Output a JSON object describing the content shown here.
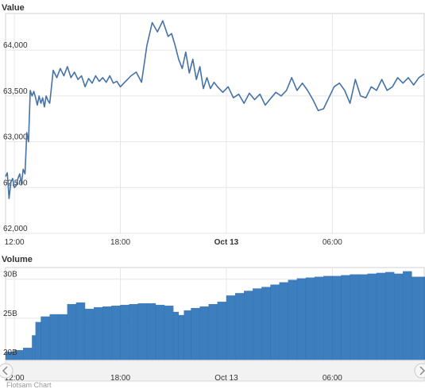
{
  "chart_data": [
    {
      "type": "line",
      "title": "",
      "ylabel": "Value",
      "ylim": [
        62000,
        64400
      ],
      "yticks": [
        62000,
        62500,
        63000,
        63500,
        64000
      ],
      "ytick_labels": [
        "62,000",
        "62,500",
        "63,000",
        "63,500",
        "64,000"
      ],
      "xrange": [
        11.5,
        35.2
      ],
      "xticks": [
        {
          "hour": 12,
          "label": "12:00",
          "bold": false
        },
        {
          "hour": 18,
          "label": "18:00",
          "bold": false
        },
        {
          "hour": 24,
          "label": "Oct 13",
          "bold": true
        },
        {
          "hour": 30,
          "label": "06:00",
          "bold": false
        }
      ],
      "color": "#4572a7",
      "series": [
        {
          "name": "",
          "x": [
            11.5,
            11.6,
            11.7,
            11.8,
            11.9,
            12.0,
            12.1,
            12.2,
            12.3,
            12.4,
            12.5,
            12.6,
            12.7,
            12.8,
            12.9,
            13.0,
            13.1,
            13.2,
            13.3,
            13.4,
            13.5,
            13.6,
            13.7,
            13.8,
            13.9,
            14.0,
            14.2,
            14.4,
            14.6,
            14.8,
            15.0,
            15.2,
            15.4,
            15.6,
            15.8,
            16.0,
            16.2,
            16.4,
            16.6,
            16.8,
            17.0,
            17.2,
            17.4,
            17.6,
            17.8,
            18.0,
            18.3,
            18.6,
            18.9,
            19.2,
            19.5,
            19.8,
            20.1,
            20.4,
            20.7,
            20.9,
            21.1,
            21.3,
            21.5,
            21.7,
            21.9,
            22.1,
            22.3,
            22.5,
            22.7,
            22.9,
            23.1,
            23.3,
            23.5,
            23.8,
            24.1,
            24.4,
            24.7,
            25.0,
            25.3,
            25.6,
            25.9,
            26.2,
            26.5,
            26.8,
            27.1,
            27.4,
            27.7,
            28.0,
            28.3,
            28.6,
            28.9,
            29.2,
            29.5,
            29.8,
            30.1,
            30.4,
            30.7,
            31.0,
            31.3,
            31.6,
            31.9,
            32.2,
            32.5,
            32.8,
            33.1,
            33.4,
            33.7,
            34.0,
            34.3,
            34.6,
            34.9,
            35.2
          ],
          "values": [
            62620,
            62660,
            62380,
            62560,
            62600,
            62500,
            62520,
            62600,
            62650,
            62540,
            62700,
            62650,
            63100,
            63000,
            63560,
            63500,
            63550,
            63480,
            63400,
            63500,
            63420,
            63480,
            63380,
            63500,
            63450,
            63420,
            63780,
            63700,
            63800,
            63720,
            63820,
            63700,
            63760,
            63680,
            63720,
            63600,
            63690,
            63640,
            63720,
            63660,
            63700,
            63650,
            63720,
            63640,
            63660,
            63600,
            63660,
            63720,
            63760,
            63650,
            64050,
            64300,
            64200,
            64320,
            64150,
            64180,
            64050,
            63900,
            63800,
            63980,
            63750,
            63900,
            63680,
            63820,
            63580,
            63700,
            63580,
            63650,
            63600,
            63540,
            63600,
            63480,
            63520,
            63420,
            63530,
            63460,
            63520,
            63400,
            63470,
            63540,
            63500,
            63560,
            63700,
            63560,
            63640,
            63560,
            63460,
            63340,
            63360,
            63480,
            63600,
            63640,
            63560,
            63420,
            63680,
            63500,
            63480,
            63600,
            63560,
            63680,
            63560,
            63600,
            63700,
            63640,
            63700,
            63620,
            63700,
            63740
          ]
        }
      ]
    },
    {
      "type": "bar",
      "title": "",
      "ylabel": "Volume",
      "ylim": [
        19700000000,
        31500000000
      ],
      "yticks": [
        20000000000,
        25000000000,
        30000000000
      ],
      "ytick_labels": [
        "20B",
        "25B",
        "30B"
      ],
      "xrange": [
        11.5,
        35.2
      ],
      "xticks": [
        {
          "hour": 12,
          "label": "12:00",
          "bold": false
        },
        {
          "hour": 18,
          "label": "18:00",
          "bold": false
        },
        {
          "hour": 24,
          "label": "Oct 13",
          "bold": true
        },
        {
          "hour": 30,
          "label": "06:00",
          "bold": false
        }
      ],
      "color": "#3d7ebf",
      "series": [
        {
          "name": "",
          "x": [
            11.5,
            12.0,
            12.5,
            13.0,
            13.2,
            13.5,
            14.0,
            14.5,
            15.0,
            15.5,
            16.0,
            16.5,
            17.0,
            17.5,
            18.0,
            18.5,
            19.0,
            19.5,
            20.0,
            20.5,
            21.0,
            21.3,
            21.6,
            22.0,
            22.5,
            23.0,
            23.5,
            24.0,
            24.5,
            25.0,
            25.5,
            26.0,
            26.5,
            27.0,
            27.5,
            28.0,
            28.5,
            29.0,
            29.5,
            30.0,
            30.5,
            31.0,
            31.5,
            32.0,
            32.5,
            33.0,
            33.5,
            34.0,
            34.5,
            35.2
          ],
          "values": [
            20700000000,
            20900000000,
            21200000000,
            22800000000,
            24500000000,
            25200000000,
            25500000000,
            25500000000,
            26800000000,
            27000000000,
            26200000000,
            26400000000,
            26500000000,
            26600000000,
            26700000000,
            26800000000,
            26900000000,
            26900000000,
            26700000000,
            26600000000,
            25800000000,
            25400000000,
            26000000000,
            26300000000,
            26500000000,
            26800000000,
            27100000000,
            27900000000,
            28200000000,
            28500000000,
            28800000000,
            29000000000,
            29300000000,
            29600000000,
            29900000000,
            30100000000,
            30200000000,
            30300000000,
            30400000000,
            30400000000,
            30500000000,
            30600000000,
            30600000000,
            30700000000,
            30800000000,
            30900000000,
            30700000000,
            31000000000,
            30300000000,
            30300000000
          ]
        }
      ]
    }
  ],
  "credit": "Flotsam Chart"
}
